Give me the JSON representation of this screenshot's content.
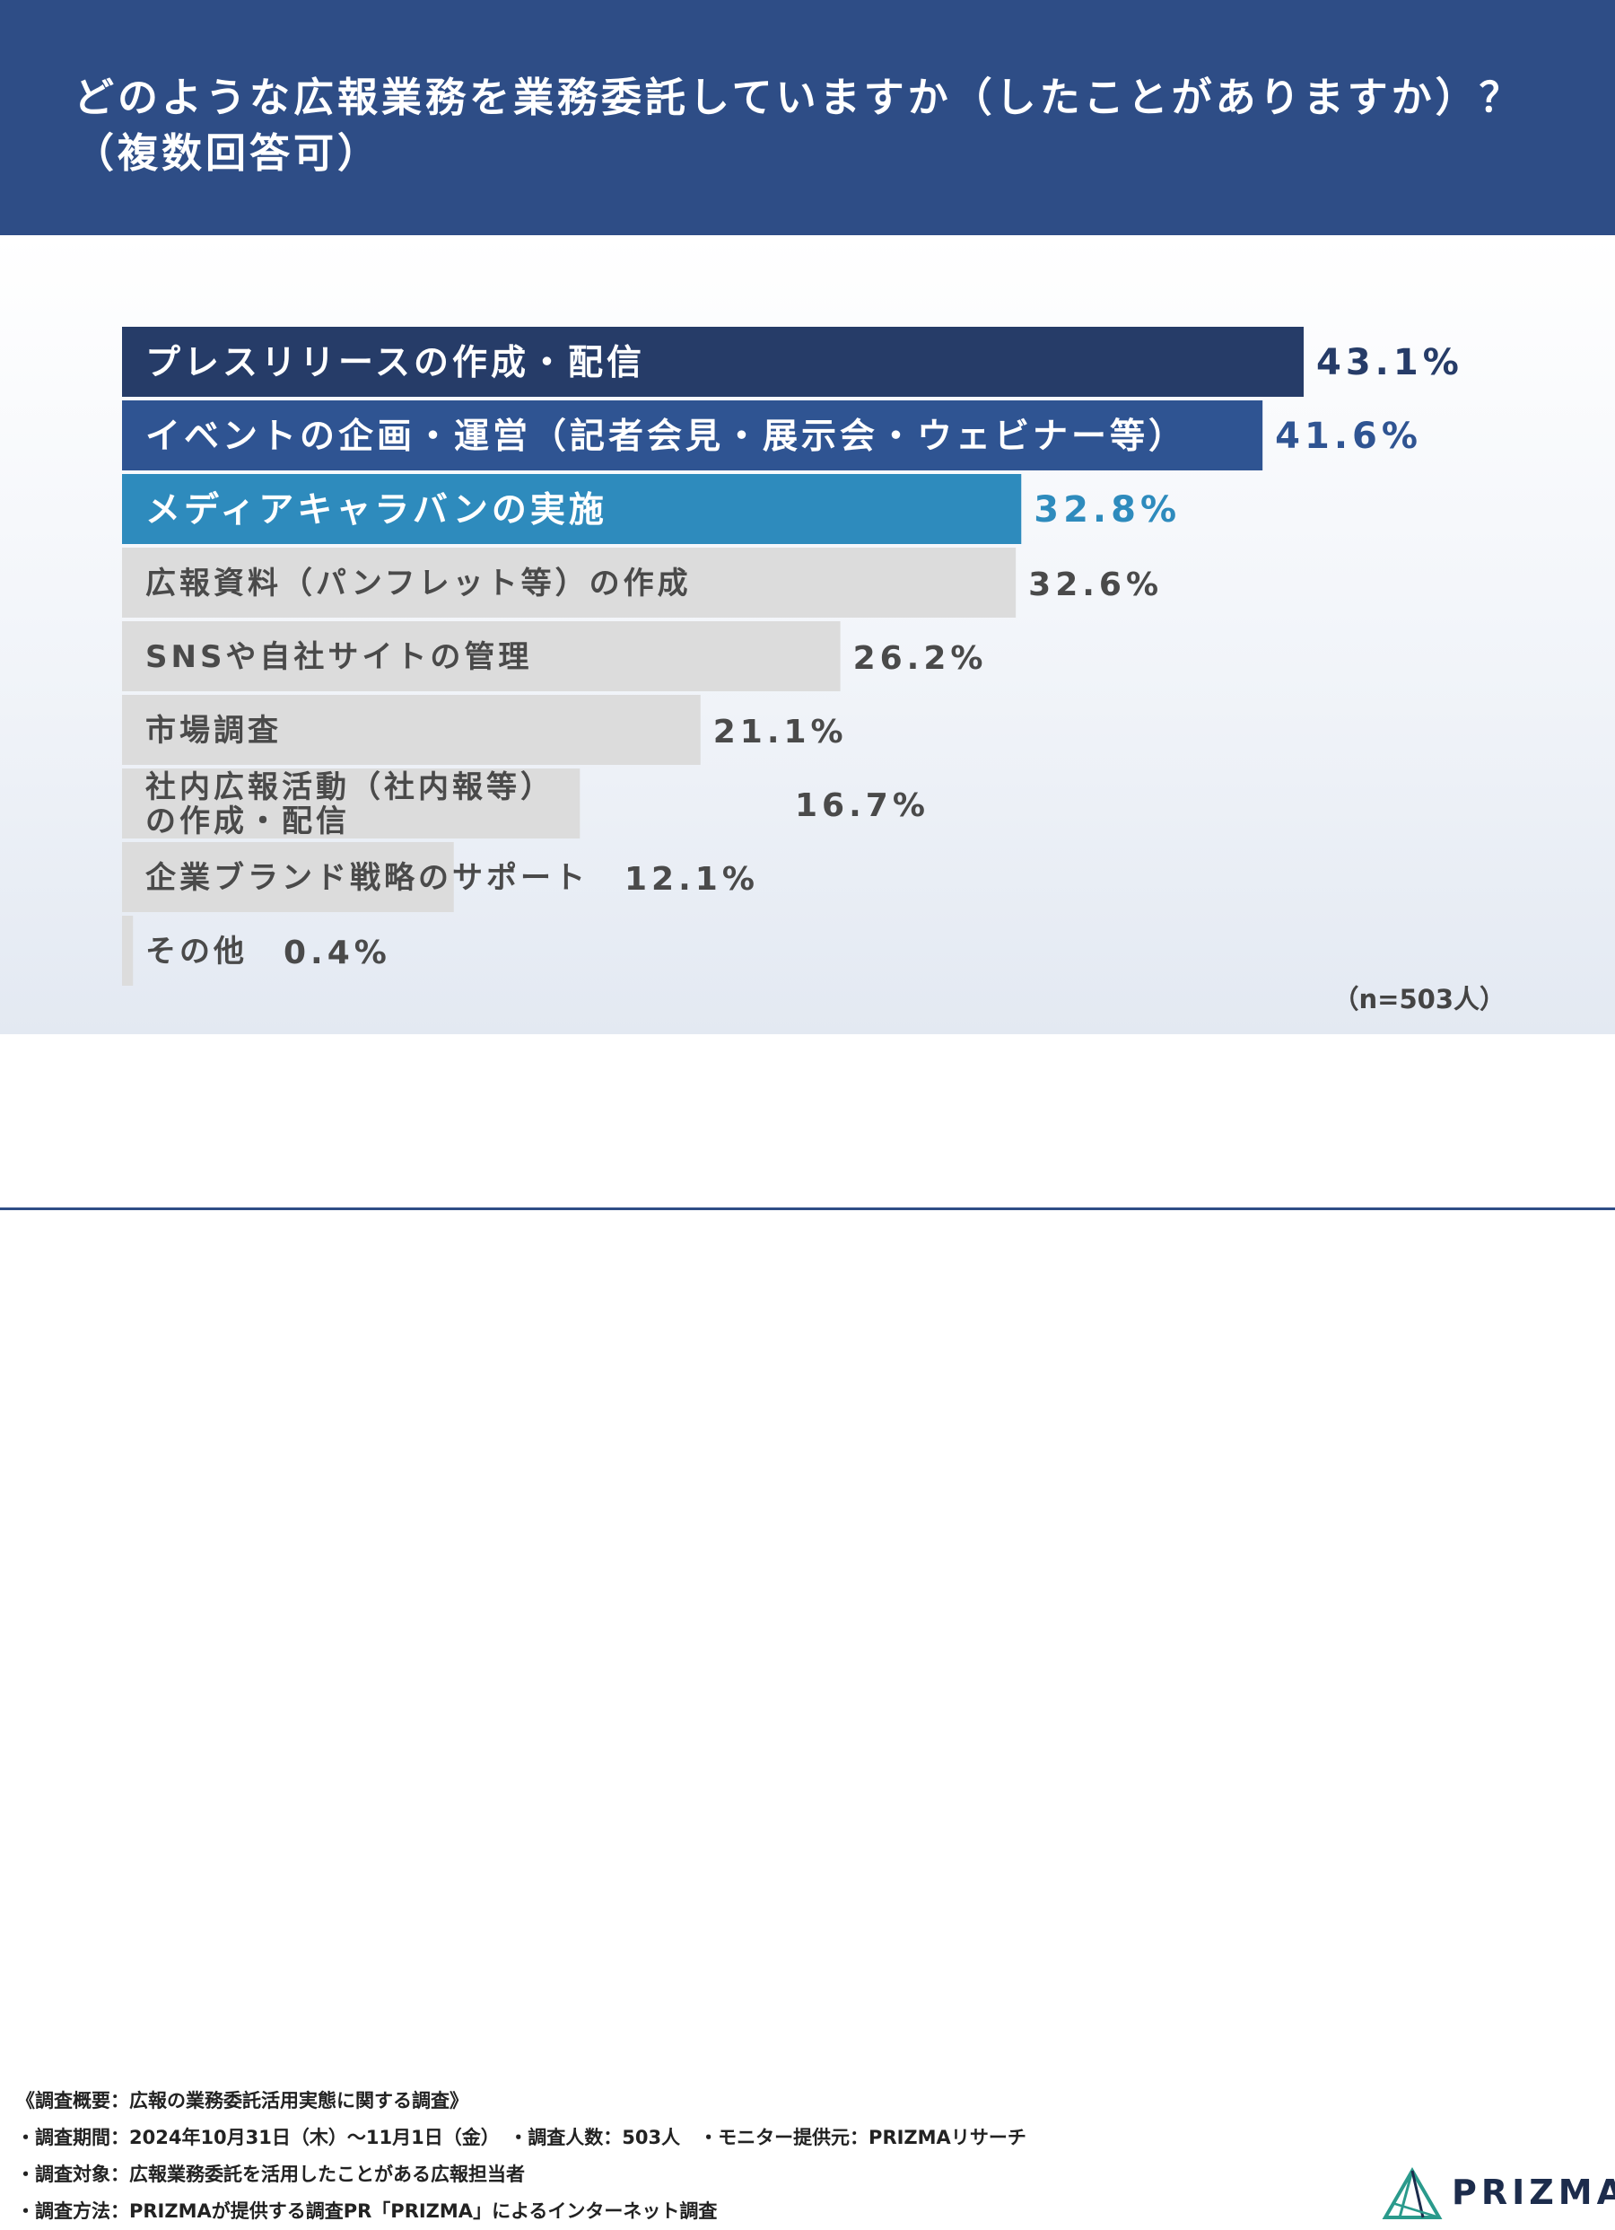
{
  "header": {
    "title_line1": "どのような広報業務を業務委託していますか（したことがありますか）？",
    "title_line2": "（複数回答可）"
  },
  "chart_data": {
    "type": "bar",
    "orientation": "horizontal",
    "unit": "%",
    "categories": [
      "プレスリリースの作成・配信",
      "イベントの企画・運営（記者会見・展示会・ウェビナー等）",
      "メディアキャラバンの実施",
      "広報資料（パンフレット等）の作成",
      "SNSや自社サイトの管理",
      "市場調査",
      "社内広報活動（社内報等）の作成・配信",
      "企業ブランド戦略のサポート",
      "その他"
    ],
    "label_lines": [
      [
        "プレスリリースの作成・配信"
      ],
      [
        "イベントの企画・運営（記者会見・展示会・ウェビナー等）"
      ],
      [
        "メディアキャラバンの実施"
      ],
      [
        "広報資料（パンフレット等）の作成"
      ],
      [
        "SNSや自社サイトの管理"
      ],
      [
        "市場調査"
      ],
      [
        "社内広報活動（社内報等）",
        "の作成・配信"
      ],
      [
        "企業ブランド戦略のサポート"
      ],
      [
        "その他"
      ]
    ],
    "values": [
      43.1,
      41.6,
      32.8,
      32.6,
      26.2,
      21.1,
      16.7,
      12.1,
      0.4
    ],
    "value_labels": [
      "43.1%",
      "41.6%",
      "32.8%",
      "32.6%",
      "26.2%",
      "21.1%",
      "16.7%",
      "12.1%",
      "0.4%"
    ],
    "bar_colors": [
      "#263c68",
      "#2f5492",
      "#2e8bbd",
      "#dcdcdc",
      "#dcdcdc",
      "#dcdcdc",
      "#dcdcdc",
      "#dcdcdc",
      "#dcdcdc"
    ],
    "label_colors": [
      "#ffffff",
      "#ffffff",
      "#ffffff",
      "#4a4a4a",
      "#4a4a4a",
      "#4a4a4a",
      "#4a4a4a",
      "#4a4a4a",
      "#4a4a4a"
    ],
    "value_colors": [
      "#263c68",
      "#2f5492",
      "#2e8bbd",
      "#4a4a4a",
      "#4a4a4a",
      "#4a4a4a",
      "#4a4a4a",
      "#4a4a4a",
      "#4a4a4a"
    ],
    "xlim": [
      0,
      43.1
    ],
    "grid": false,
    "legend": "none"
  },
  "sample_note": "（n=503人）",
  "footer": {
    "notes": [
      "《調査概要：広報の業務委託活用実態に関する調査》",
      "・調査期間：2024年10月31日（木）〜11月1日（金）　・調査人数：503人　・モニター提供元：PRIZMAリサーチ",
      "・調査対象：広報業務委託を活用したことがある広報担当者",
      "・調査方法：PRIZMAが提供する調査PR「PRIZMA」によるインターネット調査"
    ],
    "logo_text": "PRIZMA"
  },
  "colors": {
    "header_bg": "#2e4d86",
    "brand_dark": "#263c68",
    "brand_mid": "#2f5492",
    "brand_light": "#2e8bbd",
    "neutral_bar": "#dcdcdc",
    "logo_teal": "#2a9a8c"
  }
}
